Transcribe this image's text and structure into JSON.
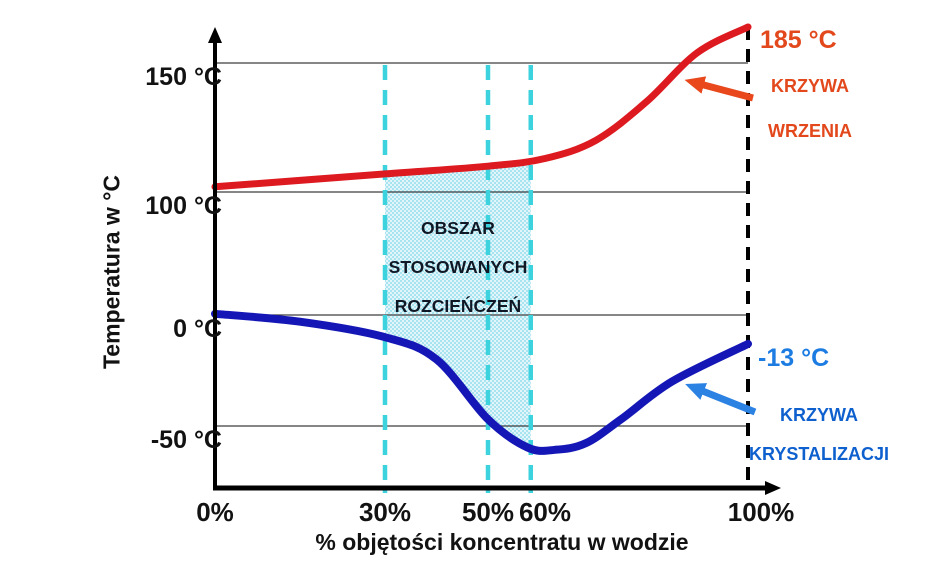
{
  "chart_data": {
    "type": "line",
    "title": "",
    "xlabel": "% objętości koncentratu w wodzie",
    "ylabel": "Temperatura w °C",
    "xlim": [
      0,
      100
    ],
    "ylim": [
      -62,
      185
    ],
    "grid": "horizontal",
    "legend_position": "right-annotations",
    "x_ticks": [
      {
        "value": 0,
        "label": "0%"
      },
      {
        "value": 30,
        "label": "30%"
      },
      {
        "value": 50,
        "label": "50%"
      },
      {
        "value": 60,
        "label": "60%"
      },
      {
        "value": 100,
        "label": "100%"
      }
    ],
    "y_ticks": [
      {
        "value": 150,
        "label": "150 °C"
      },
      {
        "value": 100,
        "label": "100 °C"
      },
      {
        "value": 0,
        "label": "0 °C"
      },
      {
        "value": -50,
        "label": "-50 °C"
      }
    ],
    "series": [
      {
        "name": "KRZYWA WRZENIA",
        "label_lines": [
          "KRZYWA",
          "WRZENIA"
        ],
        "color": "#dd1a20",
        "label_color": "#e2481b",
        "endpoint_label": "185 °C",
        "endpoint_label_color": "#e2481b",
        "points": [
          [
            0,
            102
          ],
          [
            30,
            107
          ],
          [
            50,
            110
          ],
          [
            60,
            113
          ],
          [
            70,
            120
          ],
          [
            80,
            135
          ],
          [
            90,
            160
          ],
          [
            100,
            185
          ]
        ]
      },
      {
        "name": "KRZYWA KRYSTALIZACJI",
        "label_lines": [
          "KRZYWA",
          "KRYSTALIZACJI"
        ],
        "color": "#1417b6",
        "label_color": "#0f60cf",
        "endpoint_label": "-13 °C",
        "endpoint_label_color": "#1d7ce2",
        "points": [
          [
            0,
            1
          ],
          [
            15,
            -3
          ],
          [
            30,
            -10
          ],
          [
            40,
            -20
          ],
          [
            50,
            -47
          ],
          [
            57,
            -60
          ],
          [
            62,
            -61
          ],
          [
            68,
            -58
          ],
          [
            75,
            -47
          ],
          [
            85,
            -30
          ],
          [
            100,
            -13
          ]
        ]
      }
    ],
    "region": {
      "label_lines": [
        "OBSZAR",
        "STOSOWANYCH",
        "ROZCIEŃCZEŃ"
      ],
      "x_from": 30,
      "x_to": 57.5,
      "fill": "#e2f5fa",
      "dot_color": "#7fd9e8"
    },
    "reference_lines": {
      "cyan_dashed_x": [
        30,
        50,
        57.5
      ],
      "cyan_color": "#3cd2de",
      "black_dashed_x": 100,
      "black_color": "#000000"
    }
  }
}
